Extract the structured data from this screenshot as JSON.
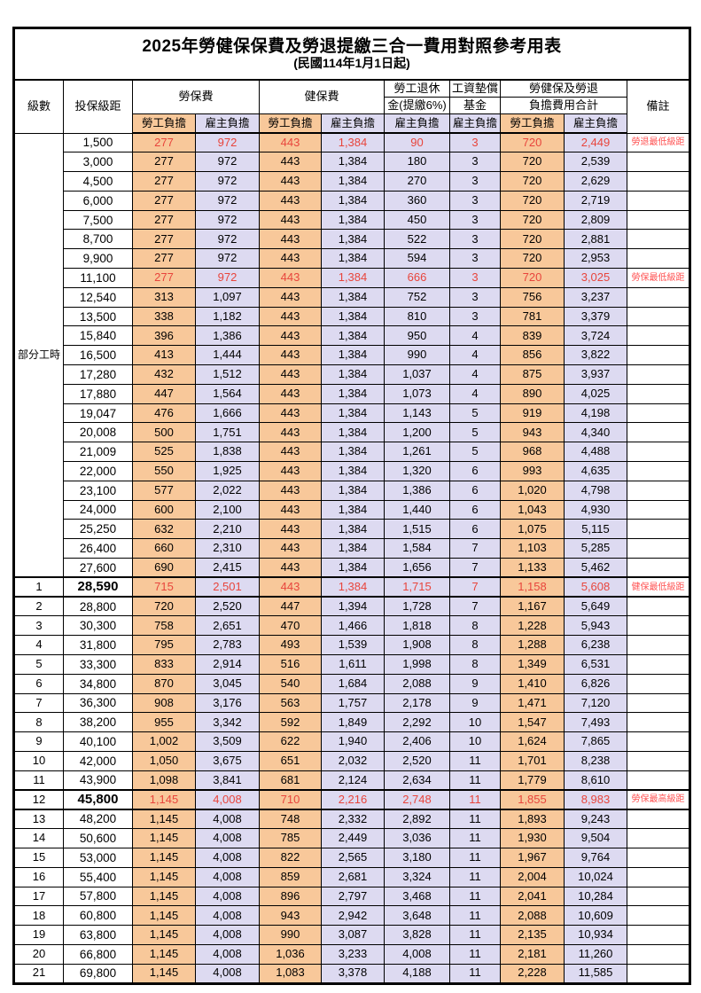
{
  "title": "2025年勞健保保費及勞退提繳三合一費用對照參考用表",
  "subtitle": "(民國114年1月1日起)",
  "header": {
    "level": "級數",
    "bracket": "投保級距",
    "labor": "勞保費",
    "health": "健保費",
    "pension_line1": "勞工退休",
    "pension_line2": "金(提繳6%)",
    "wage_fund_line1": "工資墊償",
    "wage_fund_line2": "基金",
    "total_line1": "勞健保及勞退",
    "total_line2": "負擔費用合計",
    "remark": "備註",
    "employee": "勞工負擔",
    "employer": "雇主負擔"
  },
  "part_time_label": "部分工時",
  "colors": {
    "employee_bg": "#F8C89A",
    "employer_bg": "#DDDAF1",
    "highlight_value_red": "#E8453C",
    "remark_red": "#FF5252"
  },
  "rows": [
    {
      "level": "",
      "bracket": "1,500",
      "v": [
        "277",
        "972",
        "443",
        "1,384",
        "90",
        "3",
        "720",
        "2,449"
      ],
      "remark": "勞退最低級距",
      "red": true,
      "thick": false,
      "bold": false
    },
    {
      "level": "",
      "bracket": "3,000",
      "v": [
        "277",
        "972",
        "443",
        "1,384",
        "180",
        "3",
        "720",
        "2,539"
      ],
      "remark": "",
      "red": false,
      "thick": false,
      "bold": false
    },
    {
      "level": "",
      "bracket": "4,500",
      "v": [
        "277",
        "972",
        "443",
        "1,384",
        "270",
        "3",
        "720",
        "2,629"
      ],
      "remark": "",
      "red": false,
      "thick": false,
      "bold": false
    },
    {
      "level": "",
      "bracket": "6,000",
      "v": [
        "277",
        "972",
        "443",
        "1,384",
        "360",
        "3",
        "720",
        "2,719"
      ],
      "remark": "",
      "red": false,
      "thick": false,
      "bold": false
    },
    {
      "level": "",
      "bracket": "7,500",
      "v": [
        "277",
        "972",
        "443",
        "1,384",
        "450",
        "3",
        "720",
        "2,809"
      ],
      "remark": "",
      "red": false,
      "thick": false,
      "bold": false
    },
    {
      "level": "",
      "bracket": "8,700",
      "v": [
        "277",
        "972",
        "443",
        "1,384",
        "522",
        "3",
        "720",
        "2,881"
      ],
      "remark": "",
      "red": false,
      "thick": false,
      "bold": false
    },
    {
      "level": "",
      "bracket": "9,900",
      "v": [
        "277",
        "972",
        "443",
        "1,384",
        "594",
        "3",
        "720",
        "2,953"
      ],
      "remark": "",
      "red": false,
      "thick": false,
      "bold": false
    },
    {
      "level": "",
      "bracket": "11,100",
      "v": [
        "277",
        "972",
        "443",
        "1,384",
        "666",
        "3",
        "720",
        "3,025"
      ],
      "remark": "勞保最低級距",
      "red": true,
      "thick": false,
      "bold": false
    },
    {
      "level": "",
      "bracket": "12,540",
      "v": [
        "313",
        "1,097",
        "443",
        "1,384",
        "752",
        "3",
        "756",
        "3,237"
      ],
      "remark": "",
      "red": false,
      "thick": false,
      "bold": false
    },
    {
      "level": "",
      "bracket": "13,500",
      "v": [
        "338",
        "1,182",
        "443",
        "1,384",
        "810",
        "3",
        "781",
        "3,379"
      ],
      "remark": "",
      "red": false,
      "thick": false,
      "bold": false
    },
    {
      "level": "",
      "bracket": "15,840",
      "v": [
        "396",
        "1,386",
        "443",
        "1,384",
        "950",
        "4",
        "839",
        "3,724"
      ],
      "remark": "",
      "red": false,
      "thick": false,
      "bold": false
    },
    {
      "level": "",
      "bracket": "16,500",
      "v": [
        "413",
        "1,444",
        "443",
        "1,384",
        "990",
        "4",
        "856",
        "3,822"
      ],
      "remark": "",
      "red": false,
      "thick": false,
      "bold": false
    },
    {
      "level": "",
      "bracket": "17,280",
      "v": [
        "432",
        "1,512",
        "443",
        "1,384",
        "1,037",
        "4",
        "875",
        "3,937"
      ],
      "remark": "",
      "red": false,
      "thick": false,
      "bold": false
    },
    {
      "level": "",
      "bracket": "17,880",
      "v": [
        "447",
        "1,564",
        "443",
        "1,384",
        "1,073",
        "4",
        "890",
        "4,025"
      ],
      "remark": "",
      "red": false,
      "thick": false,
      "bold": false
    },
    {
      "level": "",
      "bracket": "19,047",
      "v": [
        "476",
        "1,666",
        "443",
        "1,384",
        "1,143",
        "5",
        "919",
        "4,198"
      ],
      "remark": "",
      "red": false,
      "thick": false,
      "bold": false
    },
    {
      "level": "",
      "bracket": "20,008",
      "v": [
        "500",
        "1,751",
        "443",
        "1,384",
        "1,200",
        "5",
        "943",
        "4,340"
      ],
      "remark": "",
      "red": false,
      "thick": false,
      "bold": false
    },
    {
      "level": "",
      "bracket": "21,009",
      "v": [
        "525",
        "1,838",
        "443",
        "1,384",
        "1,261",
        "5",
        "968",
        "4,488"
      ],
      "remark": "",
      "red": false,
      "thick": false,
      "bold": false
    },
    {
      "level": "",
      "bracket": "22,000",
      "v": [
        "550",
        "1,925",
        "443",
        "1,384",
        "1,320",
        "6",
        "993",
        "4,635"
      ],
      "remark": "",
      "red": false,
      "thick": false,
      "bold": false
    },
    {
      "level": "",
      "bracket": "23,100",
      "v": [
        "577",
        "2,022",
        "443",
        "1,384",
        "1,386",
        "6",
        "1,020",
        "4,798"
      ],
      "remark": "",
      "red": false,
      "thick": false,
      "bold": false
    },
    {
      "level": "",
      "bracket": "24,000",
      "v": [
        "600",
        "2,100",
        "443",
        "1,384",
        "1,440",
        "6",
        "1,043",
        "4,930"
      ],
      "remark": "",
      "red": false,
      "thick": false,
      "bold": false
    },
    {
      "level": "",
      "bracket": "25,250",
      "v": [
        "632",
        "2,210",
        "443",
        "1,384",
        "1,515",
        "6",
        "1,075",
        "5,115"
      ],
      "remark": "",
      "red": false,
      "thick": false,
      "bold": false
    },
    {
      "level": "",
      "bracket": "26,400",
      "v": [
        "660",
        "2,310",
        "443",
        "1,384",
        "1,584",
        "7",
        "1,103",
        "5,285"
      ],
      "remark": "",
      "red": false,
      "thick": false,
      "bold": false
    },
    {
      "level": "",
      "bracket": "27,600",
      "v": [
        "690",
        "2,415",
        "443",
        "1,384",
        "1,656",
        "7",
        "1,133",
        "5,462"
      ],
      "remark": "",
      "red": false,
      "thick": false,
      "bold": false
    },
    {
      "level": "1",
      "bracket": "28,590",
      "v": [
        "715",
        "2,501",
        "443",
        "1,384",
        "1,715",
        "7",
        "1,158",
        "5,608"
      ],
      "remark": "健保最低級距",
      "red": true,
      "thick": true,
      "bold": true
    },
    {
      "level": "2",
      "bracket": "28,800",
      "v": [
        "720",
        "2,520",
        "447",
        "1,394",
        "1,728",
        "7",
        "1,167",
        "5,649"
      ],
      "remark": "",
      "red": false,
      "thick": false,
      "bold": false
    },
    {
      "level": "3",
      "bracket": "30,300",
      "v": [
        "758",
        "2,651",
        "470",
        "1,466",
        "1,818",
        "8",
        "1,228",
        "5,943"
      ],
      "remark": "",
      "red": false,
      "thick": false,
      "bold": false
    },
    {
      "level": "4",
      "bracket": "31,800",
      "v": [
        "795",
        "2,783",
        "493",
        "1,539",
        "1,908",
        "8",
        "1,288",
        "6,238"
      ],
      "remark": "",
      "red": false,
      "thick": false,
      "bold": false
    },
    {
      "level": "5",
      "bracket": "33,300",
      "v": [
        "833",
        "2,914",
        "516",
        "1,611",
        "1,998",
        "8",
        "1,349",
        "6,531"
      ],
      "remark": "",
      "red": false,
      "thick": false,
      "bold": false
    },
    {
      "level": "6",
      "bracket": "34,800",
      "v": [
        "870",
        "3,045",
        "540",
        "1,684",
        "2,088",
        "9",
        "1,410",
        "6,826"
      ],
      "remark": "",
      "red": false,
      "thick": false,
      "bold": false
    },
    {
      "level": "7",
      "bracket": "36,300",
      "v": [
        "908",
        "3,176",
        "563",
        "1,757",
        "2,178",
        "9",
        "1,471",
        "7,120"
      ],
      "remark": "",
      "red": false,
      "thick": false,
      "bold": false
    },
    {
      "level": "8",
      "bracket": "38,200",
      "v": [
        "955",
        "3,342",
        "592",
        "1,849",
        "2,292",
        "10",
        "1,547",
        "7,493"
      ],
      "remark": "",
      "red": false,
      "thick": false,
      "bold": false
    },
    {
      "level": "9",
      "bracket": "40,100",
      "v": [
        "1,002",
        "3,509",
        "622",
        "1,940",
        "2,406",
        "10",
        "1,624",
        "7,865"
      ],
      "remark": "",
      "red": false,
      "thick": false,
      "bold": false
    },
    {
      "level": "10",
      "bracket": "42,000",
      "v": [
        "1,050",
        "3,675",
        "651",
        "2,032",
        "2,520",
        "11",
        "1,701",
        "8,238"
      ],
      "remark": "",
      "red": false,
      "thick": false,
      "bold": false
    },
    {
      "level": "11",
      "bracket": "43,900",
      "v": [
        "1,098",
        "3,841",
        "681",
        "2,124",
        "2,634",
        "11",
        "1,779",
        "8,610"
      ],
      "remark": "",
      "red": false,
      "thick": false,
      "bold": false
    },
    {
      "level": "12",
      "bracket": "45,800",
      "v": [
        "1,145",
        "4,008",
        "710",
        "2,216",
        "2,748",
        "11",
        "1,855",
        "8,983"
      ],
      "remark": "勞保最高級距",
      "red": true,
      "thick": true,
      "bold": true
    },
    {
      "level": "13",
      "bracket": "48,200",
      "v": [
        "1,145",
        "4,008",
        "748",
        "2,332",
        "2,892",
        "11",
        "1,893",
        "9,243"
      ],
      "remark": "",
      "red": false,
      "thick": false,
      "bold": false
    },
    {
      "level": "14",
      "bracket": "50,600",
      "v": [
        "1,145",
        "4,008",
        "785",
        "2,449",
        "3,036",
        "11",
        "1,930",
        "9,504"
      ],
      "remark": "",
      "red": false,
      "thick": false,
      "bold": false
    },
    {
      "level": "15",
      "bracket": "53,000",
      "v": [
        "1,145",
        "4,008",
        "822",
        "2,565",
        "3,180",
        "11",
        "1,967",
        "9,764"
      ],
      "remark": "",
      "red": false,
      "thick": false,
      "bold": false
    },
    {
      "level": "16",
      "bracket": "55,400",
      "v": [
        "1,145",
        "4,008",
        "859",
        "2,681",
        "3,324",
        "11",
        "2,004",
        "10,024"
      ],
      "remark": "",
      "red": false,
      "thick": false,
      "bold": false
    },
    {
      "level": "17",
      "bracket": "57,800",
      "v": [
        "1,145",
        "4,008",
        "896",
        "2,797",
        "3,468",
        "11",
        "2,041",
        "10,284"
      ],
      "remark": "",
      "red": false,
      "thick": false,
      "bold": false
    },
    {
      "level": "18",
      "bracket": "60,800",
      "v": [
        "1,145",
        "4,008",
        "943",
        "2,942",
        "3,648",
        "11",
        "2,088",
        "10,609"
      ],
      "remark": "",
      "red": false,
      "thick": false,
      "bold": false
    },
    {
      "level": "19",
      "bracket": "63,800",
      "v": [
        "1,145",
        "4,008",
        "990",
        "3,087",
        "3,828",
        "11",
        "2,135",
        "10,934"
      ],
      "remark": "",
      "red": false,
      "thick": false,
      "bold": false
    },
    {
      "level": "20",
      "bracket": "66,800",
      "v": [
        "1,145",
        "4,008",
        "1,036",
        "3,233",
        "4,008",
        "11",
        "2,181",
        "11,260"
      ],
      "remark": "",
      "red": false,
      "thick": false,
      "bold": false
    },
    {
      "level": "21",
      "bracket": "69,800",
      "v": [
        "1,145",
        "4,008",
        "1,083",
        "3,378",
        "4,188",
        "11",
        "2,228",
        "11,585"
      ],
      "remark": "",
      "red": false,
      "thick": false,
      "bold": false
    }
  ]
}
